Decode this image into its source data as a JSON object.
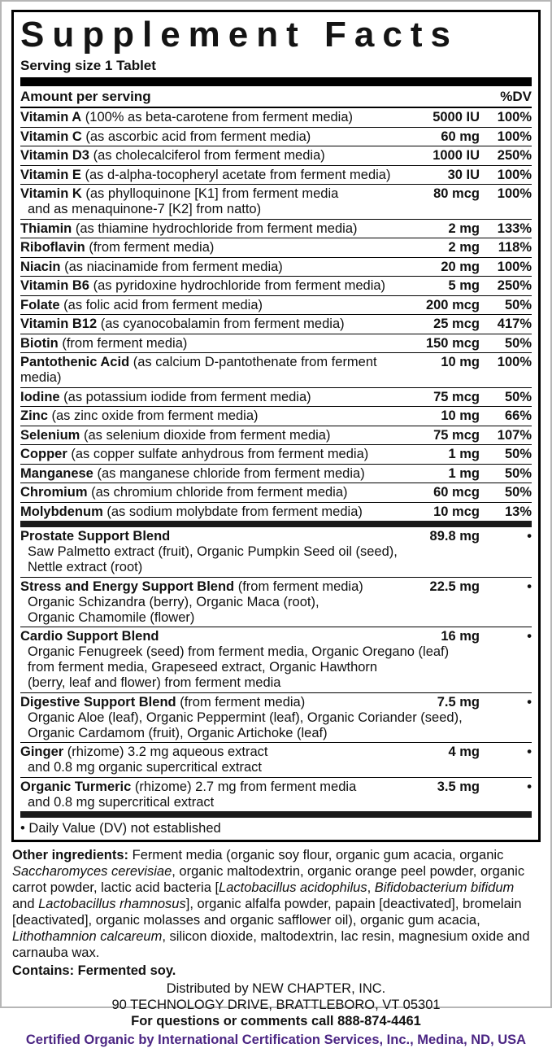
{
  "label": {
    "title": "Supplement Facts",
    "serving_size": "Serving size 1 Tablet",
    "columns": {
      "amount_header": "Amount per serving",
      "dv_header": "%DV"
    },
    "nutrients": [
      {
        "name": "Vitamin A",
        "detail": "(100% as beta-carotene from ferment media)",
        "amount": "5000 IU",
        "dv": "100%"
      },
      {
        "name": "Vitamin C",
        "detail": "(as ascorbic acid from ferment media)",
        "amount": "60 mg",
        "dv": "100%"
      },
      {
        "name": "Vitamin D3",
        "detail": "(as cholecalciferol from ferment media)",
        "amount": "1000 IU",
        "dv": "250%"
      },
      {
        "name": "Vitamin E",
        "detail": "(as d-alpha-tocopheryl acetate from ferment media)",
        "amount": "30 IU",
        "dv": "100%"
      },
      {
        "name": "Vitamin K",
        "detail": "(as phylloquinone [K1] from ferment media",
        "lines": [
          "and as menaquinone-7 [K2] from natto)"
        ],
        "amount": "80 mcg",
        "dv": "100%"
      },
      {
        "name": "Thiamin",
        "detail": "(as thiamine hydrochloride from ferment media)",
        "amount": "2 mg",
        "dv": "133%"
      },
      {
        "name": "Riboflavin",
        "detail": "(from ferment media)",
        "amount": "2 mg",
        "dv": "118%"
      },
      {
        "name": "Niacin",
        "detail": "(as niacinamide from ferment media)",
        "amount": "20 mg",
        "dv": "100%"
      },
      {
        "name": "Vitamin B6",
        "detail": "(as pyridoxine hydrochloride from ferment media)",
        "amount": "5 mg",
        "dv": "250%"
      },
      {
        "name": "Folate",
        "detail": "(as folic acid from ferment media)",
        "amount": "200 mcg",
        "dv": "50%"
      },
      {
        "name": "Vitamin B12",
        "detail": "(as cyanocobalamin from ferment media)",
        "amount": "25 mcg",
        "dv": "417%"
      },
      {
        "name": "Biotin",
        "detail": "(from ferment media)",
        "amount": "150 mcg",
        "dv": "50%"
      },
      {
        "name": "Pantothenic Acid",
        "detail": "(as calcium D-pantothenate from ferment media)",
        "amount": "10 mg",
        "dv": "100%"
      },
      {
        "name": "Iodine",
        "detail": "(as potassium iodide from ferment media)",
        "amount": "75 mcg",
        "dv": "50%"
      },
      {
        "name": "Zinc",
        "detail": "(as zinc oxide from ferment media)",
        "amount": "10 mg",
        "dv": "66%"
      },
      {
        "name": "Selenium",
        "detail": "(as selenium dioxide from ferment media)",
        "amount": "75 mcg",
        "dv": "107%"
      },
      {
        "name": "Copper",
        "detail": "(as copper sulfate anhydrous from ferment media)",
        "amount": "1 mg",
        "dv": "50%"
      },
      {
        "name": "Manganese",
        "detail": "(as manganese chloride from ferment media)",
        "amount": "1 mg",
        "dv": "50%"
      },
      {
        "name": "Chromium",
        "detail": "(as chromium chloride from ferment media)",
        "amount": "60 mcg",
        "dv": "50%"
      },
      {
        "name": "Molybdenum",
        "detail": "(as sodium molybdate from ferment media)",
        "amount": "10 mcg",
        "dv": "13%"
      }
    ],
    "blends": [
      {
        "name": "Prostate Support Blend",
        "detail": "",
        "amount": "89.8 mg",
        "dv": "•",
        "lines": [
          "Saw Palmetto extract (fruit), Organic Pumpkin Seed oil (seed),",
          "Nettle extract (root)"
        ]
      },
      {
        "name": "Stress and Energy Support Blend",
        "detail": "(from ferment media)",
        "amount": "22.5 mg",
        "dv": "•",
        "lines": [
          "Organic Schizandra (berry), Organic Maca (root),",
          "Organic Chamomile (flower)"
        ]
      },
      {
        "name": "Cardio Support Blend",
        "detail": "",
        "amount": "16 mg",
        "dv": "•",
        "lines": [
          "Organic Fenugreek (seed) from ferment media, Organic Oregano (leaf)",
          "from ferment media, Grapeseed extract, Organic Hawthorn",
          "(berry, leaf and flower) from ferment media"
        ]
      },
      {
        "name": "Digestive Support Blend",
        "detail": "(from ferment media)",
        "amount": "7.5 mg",
        "dv": "•",
        "lines": [
          "Organic Aloe (leaf), Organic Peppermint (leaf), Organic Coriander (seed),",
          "Organic Cardamom (fruit), Organic Artichoke (leaf)"
        ]
      },
      {
        "name": "Ginger",
        "detail": "(rhizome) 3.2 mg aqueous extract",
        "amount": "4 mg",
        "dv": "•",
        "lines": [
          "and 0.8 mg organic supercritical extract"
        ]
      },
      {
        "name": "Organic Turmeric",
        "detail": "(rhizome) 2.7 mg from ferment media",
        "amount": "3.5 mg",
        "dv": "•",
        "lines": [
          "and 0.8 mg supercritical extract"
        ]
      }
    ],
    "footnote": "• Daily Value (DV) not established",
    "other_ingredients": [
      {
        "b": true,
        "t": "Other ingredients: "
      },
      {
        "t": "Ferment media (organic soy flour, organic gum acacia, organic "
      },
      {
        "i": true,
        "t": "Saccharomyces cerevisiae"
      },
      {
        "t": ", organic maltodextrin, organic orange peel powder, organic carrot powder, lactic acid bacteria ["
      },
      {
        "i": true,
        "t": "Lactobacillus acidophilus"
      },
      {
        "t": ", "
      },
      {
        "i": true,
        "t": "Bifidobacterium bifidum"
      },
      {
        "t": " and "
      },
      {
        "i": true,
        "t": "Lactobacillus rhamnosus"
      },
      {
        "t": "], organic alfalfa powder, papain [deactivated], bromelain [deactivated], organic molasses and organic safflower oil), organic gum acacia, "
      },
      {
        "i": true,
        "t": "Lithothamnion calcareum"
      },
      {
        "t": ", silicon dioxide, maltodextrin, lac resin, magnesium oxide and carnauba wax."
      }
    ],
    "contains": "Contains: Fermented soy.",
    "distributor": [
      "Distributed by NEW CHAPTER, INC.",
      "90 TECHNOLOGY DRIVE, BRATTLEBORO, VT 05301",
      "For questions or comments call 888-874-4461"
    ],
    "certified": "Certified Organic by International Certification Services, Inc., Medina, ND, USA",
    "colors": {
      "certified_purple": "#4b2583",
      "text_black": "#111111"
    }
  }
}
